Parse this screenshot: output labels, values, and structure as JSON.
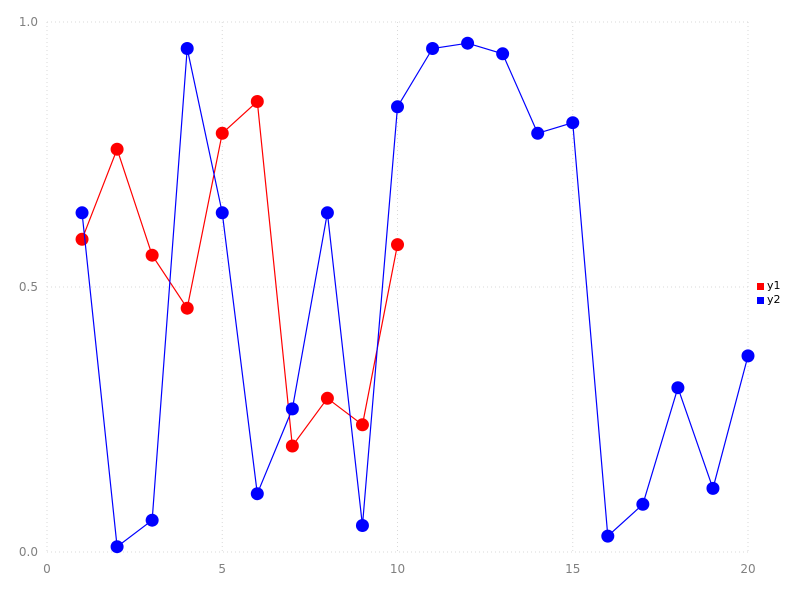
{
  "chart_data": {
    "type": "line",
    "title": "",
    "xlabel": "",
    "ylabel": "",
    "xlim": [
      0,
      20
    ],
    "ylim": [
      0.0,
      1.0
    ],
    "x_ticks": [
      0,
      5,
      10,
      15,
      20
    ],
    "x_tick_labels": [
      "0",
      "5",
      "10",
      "15",
      "20"
    ],
    "y_ticks": [
      0.0,
      0.5,
      1.0
    ],
    "y_tick_labels": [
      "0.0",
      "0.5",
      "1.0"
    ],
    "grid": "dotted",
    "grid_color": "#d9d9d9",
    "tick_label_color": "#808080",
    "legend_position": "right",
    "series": [
      {
        "name": "y1",
        "color": "#ff0000",
        "x": [
          1,
          2,
          3,
          4,
          5,
          6,
          7,
          8,
          9,
          10
        ],
        "values": [
          0.59,
          0.76,
          0.56,
          0.46,
          0.79,
          0.85,
          0.2,
          0.29,
          0.24,
          0.58
        ]
      },
      {
        "name": "y2",
        "color": "#0000ff",
        "x": [
          1,
          2,
          3,
          4,
          5,
          6,
          7,
          8,
          9,
          10,
          11,
          12,
          13,
          14,
          15,
          16,
          17,
          18,
          19,
          20
        ],
        "values": [
          0.64,
          0.01,
          0.06,
          0.95,
          0.64,
          0.11,
          0.27,
          0.64,
          0.05,
          0.84,
          0.95,
          0.96,
          0.94,
          0.79,
          0.81,
          0.03,
          0.09,
          0.31,
          0.12,
          0.37
        ]
      }
    ]
  },
  "legend": {
    "items": [
      {
        "label": "y1"
      },
      {
        "label": "y2"
      }
    ]
  }
}
